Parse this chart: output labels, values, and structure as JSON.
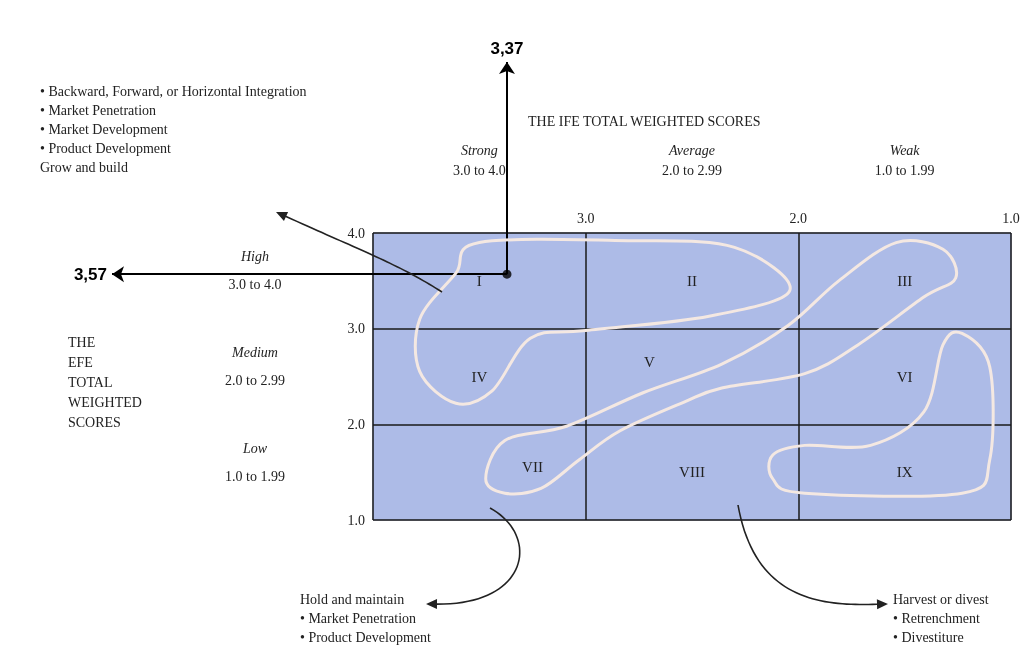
{
  "chart_data": {
    "type": "scatter",
    "x": [
      3.37
    ],
    "values": [
      3.57
    ],
    "color": "#000000",
    "marker": "circle",
    "xlim": [
      4,
      1
    ],
    "xticks": [
      {
        "value": 4,
        "label": null
      },
      {
        "value": 3,
        "label": "3.0"
      },
      {
        "value": 2,
        "label": "2.0"
      },
      {
        "value": 1,
        "label": "1.0"
      }
    ],
    "ylim": [
      1,
      4
    ],
    "yticks": [
      {
        "value": 1,
        "label": "1.0"
      },
      {
        "value": 2,
        "label": "2.0"
      },
      {
        "value": 3,
        "label": "3.0"
      },
      {
        "value": 4,
        "label": "4.0"
      }
    ],
    "grid": true,
    "annotations": [
      {
        "text": "3,37",
        "x": 3.37,
        "y": 3.57
      },
      {
        "text": "3,57",
        "x": 3.37,
        "y": 3.57
      },
      "Strong\n3.0 to 4.0",
      "Average\n2.0 to 2.99",
      "Weak\n1.0 to 1.99",
      "High\n3.0 to 4.0",
      "Medium\n2.0 to 2.99",
      "Low\n1.0 to 1.99",
      "I",
      "II",
      "III",
      "IV",
      "V",
      "VI",
      "VII",
      "VIII",
      "IX",
      "• Backward, Forward, or Horizontal Integration\n• Market Penetration\n• Market Development\n• Product Development\nGrow and build",
      "Hold and maintain\n• Market Penetration\n• Product Development",
      "Harvest or divest\n• Retrenchment\n• Divestiture",
      "THE IFE TOTAL WEIGHTED SCORES",
      "THE\nEFE\nTOTAL\nWEIGHTED\nSCORES"
    ]
  }
}
